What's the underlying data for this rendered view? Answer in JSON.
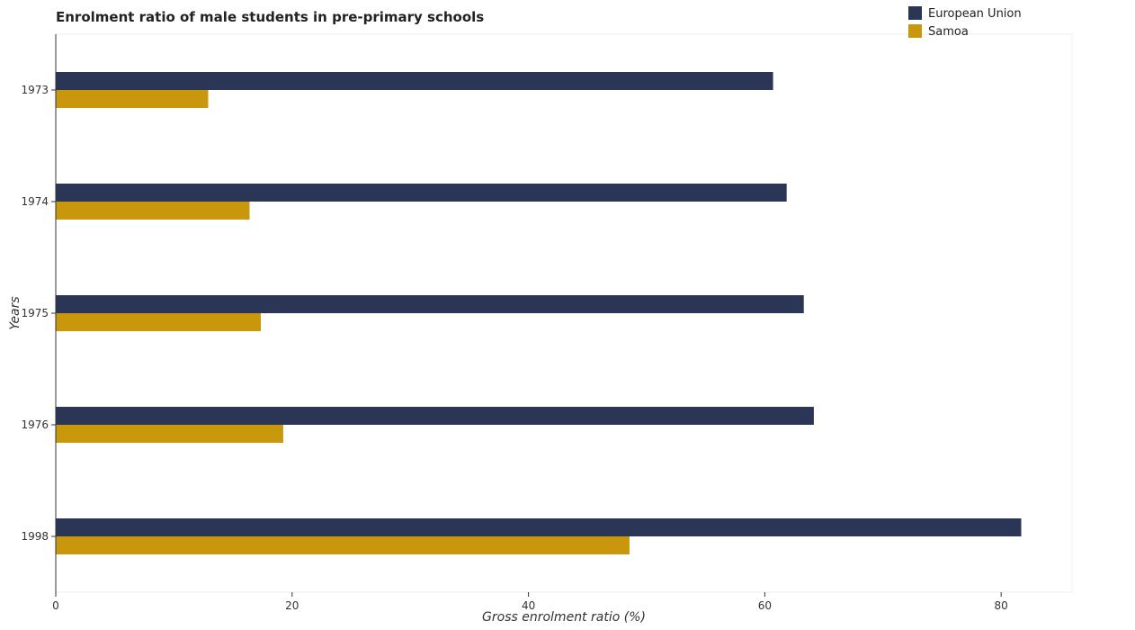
{
  "chart_data": {
    "type": "bar",
    "orientation": "horizontal",
    "title": "Enrolment ratio of male students in pre-primary schools",
    "xlabel": "Gross enrolment ratio (%)",
    "ylabel": "Years",
    "categories": [
      "1973",
      "1974",
      "1975",
      "1976",
      "1998"
    ],
    "series": [
      {
        "name": "European Union",
        "color": "#2b3556",
        "values": [
          60.7,
          61.85,
          63.3,
          64.15,
          81.7
        ]
      },
      {
        "name": "Samoa",
        "color": "#c9970c",
        "values": [
          12.9,
          16.4,
          17.35,
          19.25,
          48.55
        ]
      }
    ],
    "xlim": [
      0,
      86
    ],
    "xticks": [
      0,
      20,
      40,
      60,
      80
    ],
    "legend_position": "top-right",
    "grid": false
  }
}
